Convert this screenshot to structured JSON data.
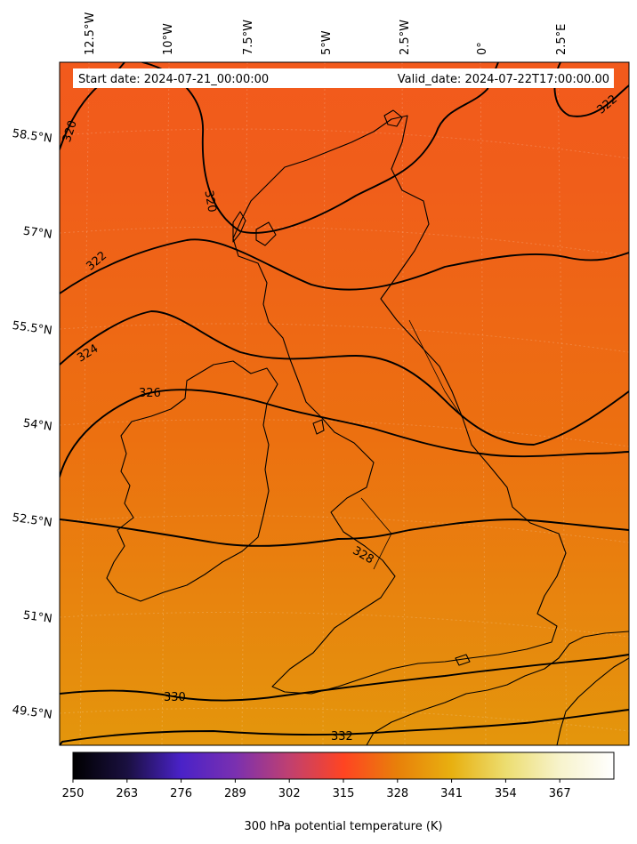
{
  "header": {
    "start_date": "Start date: 2024-07-21_00:00:00",
    "valid_date": "Valid_date: 2024-07-22T17:00:00.00"
  },
  "longitude_labels": [
    "12.5°W",
    "10°W",
    "7.5°W",
    "5°W",
    "2.5°W",
    "0°",
    "2.5°E"
  ],
  "latitude_labels": [
    "58.5°N",
    "57°N",
    "55.5°N",
    "54°N",
    "52.5°N",
    "51°N",
    "49.5°N"
  ],
  "contour_labels": [
    "320",
    "320",
    "322",
    "322",
    "324",
    "326",
    "328",
    "330",
    "332"
  ],
  "colorbar": {
    "label": "300 hPa potential temperature (K)",
    "ticks": [
      "250",
      "263",
      "276",
      "289",
      "302",
      "315",
      "328",
      "341",
      "354",
      "367"
    ],
    "min": 250,
    "max": 380,
    "colormap_stops": [
      {
        "value": 250,
        "color": "#000000"
      },
      {
        "value": 263,
        "color": "#1a1040"
      },
      {
        "value": 276,
        "color": "#4a22c8"
      },
      {
        "value": 289,
        "color": "#7a30b0"
      },
      {
        "value": 302,
        "color": "#c04070"
      },
      {
        "value": 315,
        "color": "#ff4422"
      },
      {
        "value": 328,
        "color": "#e8800a"
      },
      {
        "value": 341,
        "color": "#e8b010"
      },
      {
        "value": 354,
        "color": "#ecdd70"
      },
      {
        "value": 367,
        "color": "#f7f3cc"
      },
      {
        "value": 380,
        "color": "#ffffff"
      }
    ]
  },
  "field_colors": {
    "north": "#f25a1c",
    "mid": "#ec7010",
    "south": "#e4960c"
  }
}
